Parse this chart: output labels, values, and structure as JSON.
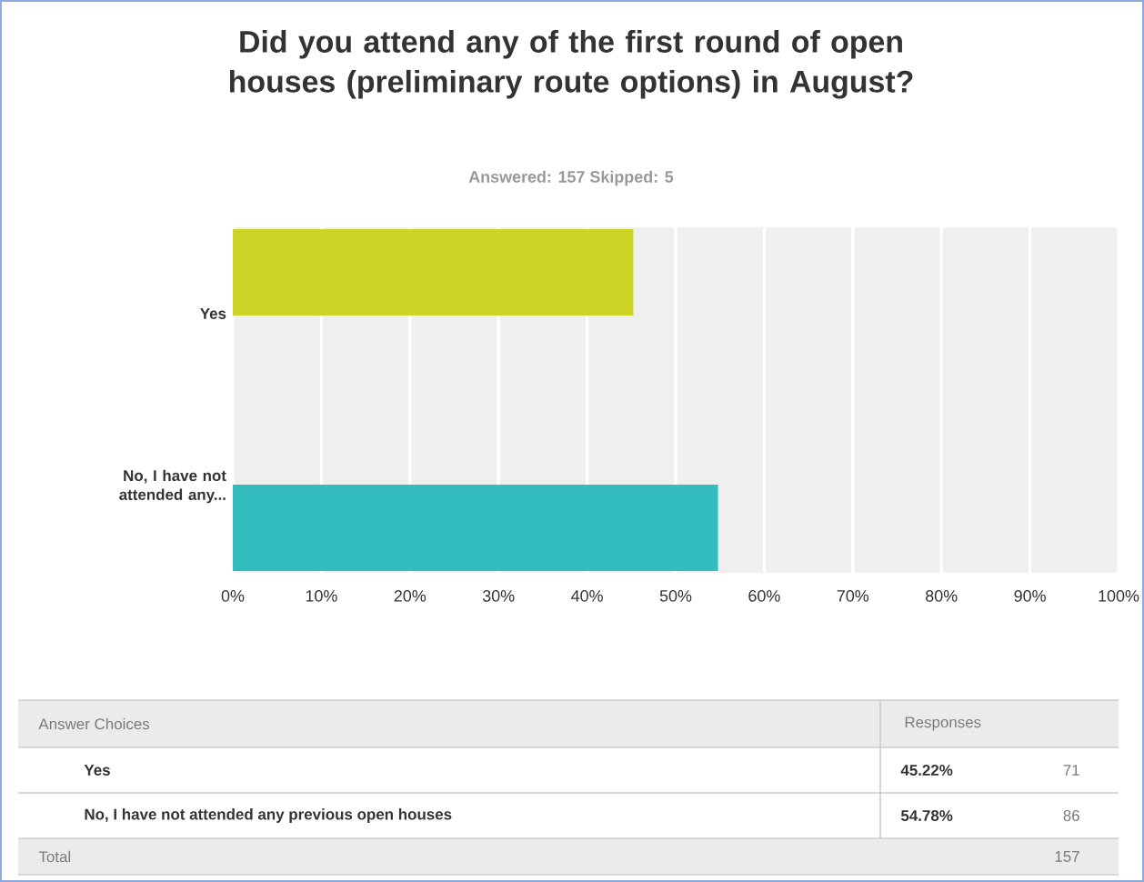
{
  "chart_data": {
    "type": "bar",
    "orientation": "horizontal",
    "title": "Did you attend any of the first round of open houses (preliminary route options) in August?",
    "subtitle": "Answered: 157    Skipped: 5",
    "categories": [
      "Yes",
      "No, I have not attended any..."
    ],
    "values": [
      45.22,
      54.78
    ],
    "colors": [
      "#cdd428",
      "#33bdbe"
    ],
    "xlim": [
      0,
      100
    ],
    "xticks": [
      {
        "value": 0,
        "label": "0%"
      },
      {
        "value": 10,
        "label": "10%"
      },
      {
        "value": 20,
        "label": "20%"
      },
      {
        "value": 30,
        "label": "30%"
      },
      {
        "value": 40,
        "label": "40%"
      },
      {
        "value": 50,
        "label": "50%"
      },
      {
        "value": 60,
        "label": "60%"
      },
      {
        "value": 70,
        "label": "70%"
      },
      {
        "value": 80,
        "label": "80%"
      },
      {
        "value": 90,
        "label": "90%"
      },
      {
        "value": 100,
        "label": "100%"
      }
    ],
    "grid": "x",
    "annotations": [
      "Answer Choices",
      "Responses",
      "Yes",
      "No, I have not attended any previous open houses",
      "71",
      "86",
      "Total",
      "157",
      "45.22%",
      "54.78%"
    ]
  }
}
